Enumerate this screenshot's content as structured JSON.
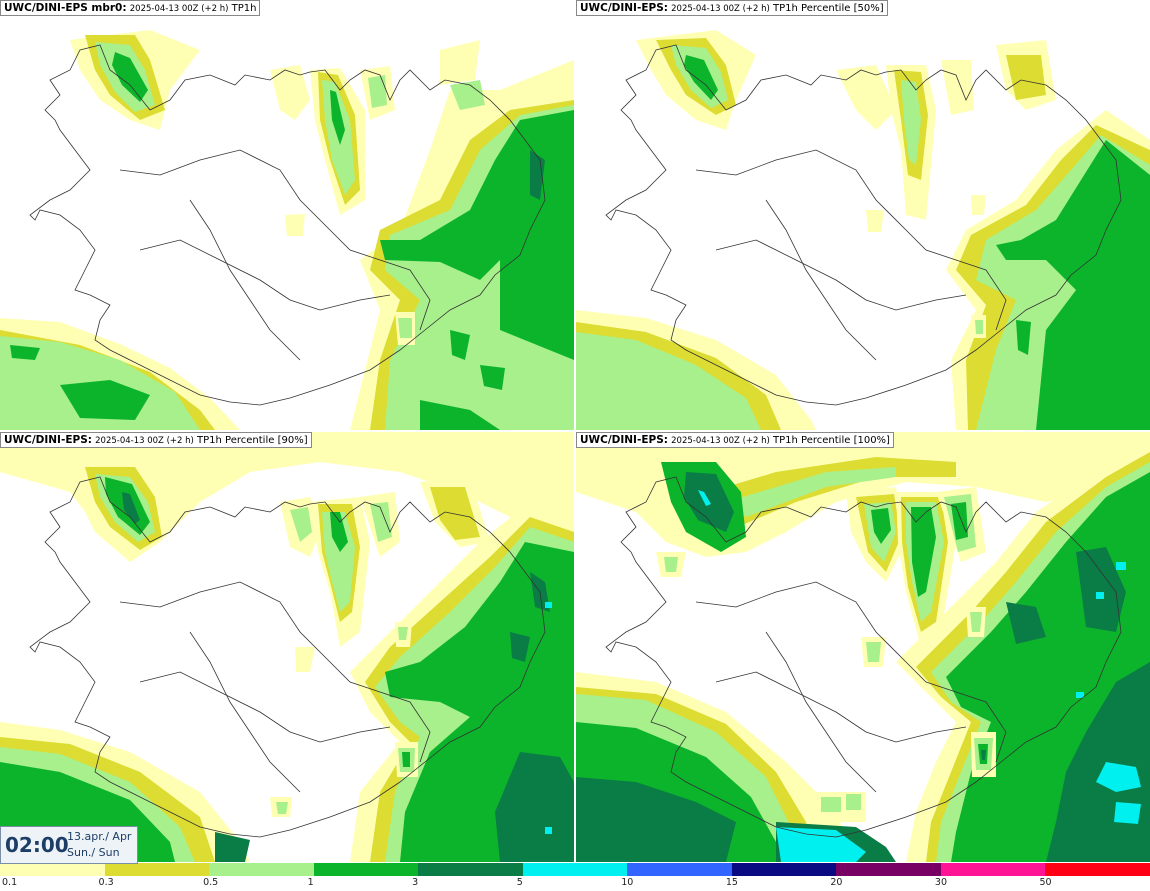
{
  "colors": {
    "c01": "#ffffb4",
    "c03": "#dcdc32",
    "c05": "#a8f08c",
    "c1": "#0cb42c",
    "c3": "#0a7c46",
    "c5": "#00f0f0",
    "c10": "#3264ff",
    "c15": "#0a0a82",
    "c20": "#780064",
    "c30": "#ff1496",
    "c50": "#ff0014",
    "coast": "#333333"
  },
  "panels": [
    {
      "model": "UWC/DINI-EPS mbr0:",
      "meta": "2025-04-13 00Z (+2 h)",
      "field": "TP1h"
    },
    {
      "model": "UWC/DINI-EPS:",
      "meta": "2025-04-13 00Z (+2 h)",
      "field": "TP1h Percentile [50%]"
    },
    {
      "model": "UWC/DINI-EPS:",
      "meta": "2025-04-13 00Z (+2 h)",
      "field": "TP1h Percentile [90%]"
    },
    {
      "model": "UWC/DINI-EPS:",
      "meta": "2025-04-13 00Z (+2 h)",
      "field": "TP1h Percentile [100%]"
    }
  ],
  "valid_time": {
    "time": "02:00",
    "date": "13.apr./ Apr",
    "day": "Sun./ Sun"
  },
  "legend": {
    "colors": [
      "#ffffb4",
      "#dcdc32",
      "#a8f08c",
      "#0cb42c",
      "#0a7c46",
      "#00f0f0",
      "#3264ff",
      "#0a0a82",
      "#780064",
      "#ff1496",
      "#ff0014"
    ],
    "ticks": [
      "0.1",
      "0.3",
      "0.5",
      "1",
      "3",
      "5",
      "10",
      "15",
      "20",
      "30",
      "50"
    ]
  }
}
